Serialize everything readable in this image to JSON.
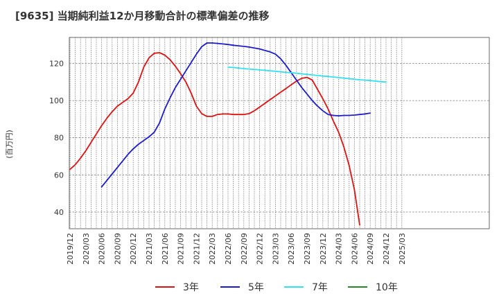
{
  "chart_data": {
    "type": "line",
    "title": "[9635]  当期純利益12か月移動合計の標準偏差の推移",
    "ylabel": "(百万円)",
    "xlabel": "",
    "ylim": [
      31,
      134
    ],
    "yticks": [
      40,
      60,
      80,
      100,
      120
    ],
    "grid": true,
    "legend_position": "bottom",
    "xticks": [
      "2019/12",
      "2020/03",
      "2020/06",
      "2020/09",
      "2020/12",
      "2021/03",
      "2021/06",
      "2021/09",
      "2021/12",
      "2022/03",
      "2022/06",
      "2022/09",
      "2022/12",
      "2023/03",
      "2023/06",
      "2023/09",
      "2023/12",
      "2024/03",
      "2024/06",
      "2024/09",
      "2024/12",
      "2025/03"
    ],
    "x_start": "2019/12",
    "series": [
      {
        "name": "3年",
        "color": "#dd1111",
        "start_month_index": 0,
        "values": [
          63,
          65.5,
          69,
          73,
          77.5,
          82,
          86.5,
          90.5,
          94,
          97,
          99,
          101,
          104,
          110,
          118,
          123,
          125.5,
          125.8,
          124.5,
          122,
          118.5,
          114.5,
          110,
          104,
          97,
          93,
          91.5,
          91.5,
          92.5,
          92.8,
          92.8,
          92.5,
          92.5,
          92.5,
          93,
          94.5,
          96.5,
          98.5,
          100.5,
          102.5,
          104.5,
          106.5,
          108.5,
          110.5,
          112,
          112.5,
          111,
          106,
          101,
          95.5,
          89,
          83,
          75,
          65,
          52,
          33
        ]
      },
      {
        "name": "5年",
        "color": "#1a1acc",
        "start_month_index": 6,
        "values": [
          53.5,
          57,
          60.5,
          64,
          67.5,
          71,
          74,
          76.5,
          78.5,
          80.5,
          83,
          88,
          95.5,
          101.5,
          107,
          111.5,
          116,
          120.5,
          125,
          129,
          131,
          131,
          130.8,
          130.5,
          130.2,
          129.8,
          129.5,
          129.2,
          128.8,
          128.3,
          127.8,
          127,
          126.2,
          125,
          122.5,
          119,
          115,
          111,
          107,
          103.5,
          100,
          97,
          94.5,
          92.5,
          92,
          91.8,
          92,
          92,
          92.2,
          92.5,
          92.8,
          93.3
        ]
      },
      {
        "name": "7年",
        "color": "#33e0f0",
        "start_month_index": 30,
        "values": [
          118,
          117.8,
          117.5,
          117.2,
          117,
          116.8,
          116.5,
          116.3,
          116,
          115.8,
          115.5,
          115.2,
          115,
          114.7,
          114.4,
          114.1,
          113.8,
          113.5,
          113.2,
          113,
          112.7,
          112.4,
          112.1,
          111.8,
          111.5,
          111.2,
          111,
          110.8,
          110.5,
          110.2,
          110
        ]
      },
      {
        "name": "10年",
        "color": "#22882a",
        "start_month_index": 0,
        "values": []
      }
    ]
  }
}
